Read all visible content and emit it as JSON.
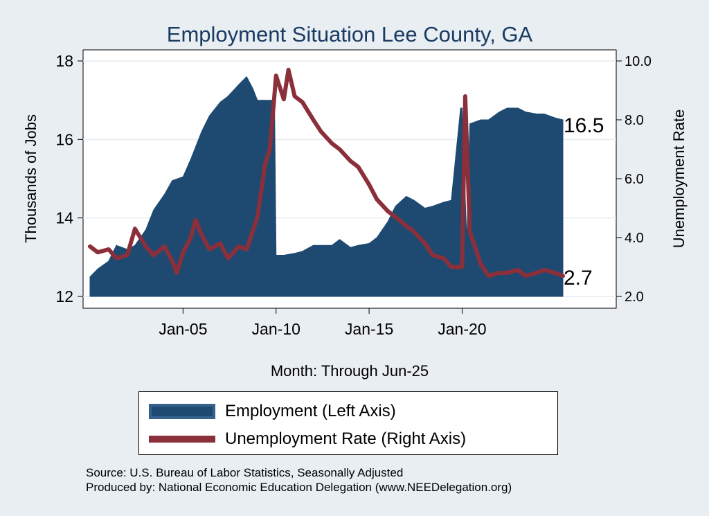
{
  "chart_data": {
    "type": "area",
    "title": "Employment Situation Lee  County, GA",
    "xlabel": "Month: Through Jun-25",
    "ylabel_left": "Thousands of Jobs",
    "ylabel_right": "Unemployment Rate",
    "x_ticks": [
      "Jan-05",
      "Jan-10",
      "Jan-15",
      "Jan-20"
    ],
    "y_left_ticks": [
      "12",
      "14",
      "16",
      "18"
    ],
    "y_right_ticks": [
      "2.0",
      "4.0",
      "6.0",
      "8.0",
      "10.0"
    ],
    "y_left_range": [
      12,
      18
    ],
    "y_right_range": [
      2,
      10
    ],
    "x_range": [
      "2000-01",
      "2025-06"
    ],
    "grid": true,
    "legend_position": "bottom",
    "series": [
      {
        "name": "Employment (Left Axis)",
        "axis": "left",
        "kind": "area",
        "color": "#1e4a72",
        "points": [
          [
            "2000-01",
            12.5
          ],
          [
            "2000-06",
            12.7
          ],
          [
            "2001-01",
            12.9
          ],
          [
            "2001-06",
            13.3
          ],
          [
            "2002-01",
            13.2
          ],
          [
            "2002-06",
            13.3
          ],
          [
            "2003-01",
            13.7
          ],
          [
            "2003-06",
            14.2
          ],
          [
            "2004-01",
            14.6
          ],
          [
            "2004-06",
            14.95
          ],
          [
            "2005-01",
            15.05
          ],
          [
            "2005-06",
            15.5
          ],
          [
            "2006-01",
            16.2
          ],
          [
            "2006-06",
            16.6
          ],
          [
            "2007-01",
            16.95
          ],
          [
            "2007-06",
            17.1
          ],
          [
            "2008-01",
            17.4
          ],
          [
            "2008-06",
            17.6
          ],
          [
            "2008-10",
            17.3
          ],
          [
            "2009-01",
            17.0
          ],
          [
            "2009-06",
            17.0
          ],
          [
            "2009-12",
            17.0
          ],
          [
            "2010-01",
            13.05
          ],
          [
            "2010-06",
            13.05
          ],
          [
            "2011-01",
            13.1
          ],
          [
            "2011-06",
            13.15
          ],
          [
            "2012-01",
            13.3
          ],
          [
            "2012-06",
            13.3
          ],
          [
            "2013-01",
            13.3
          ],
          [
            "2013-06",
            13.45
          ],
          [
            "2014-01",
            13.25
          ],
          [
            "2014-06",
            13.3
          ],
          [
            "2015-01",
            13.35
          ],
          [
            "2015-06",
            13.5
          ],
          [
            "2016-01",
            13.9
          ],
          [
            "2016-06",
            14.3
          ],
          [
            "2017-01",
            14.55
          ],
          [
            "2017-06",
            14.45
          ],
          [
            "2018-01",
            14.25
          ],
          [
            "2018-06",
            14.3
          ],
          [
            "2019-01",
            14.4
          ],
          [
            "2019-06",
            14.45
          ],
          [
            "2019-12",
            16.8
          ],
          [
            "2020-01",
            16.8
          ],
          [
            "2020-04",
            13.4
          ],
          [
            "2020-06",
            16.4
          ],
          [
            "2021-01",
            16.5
          ],
          [
            "2021-06",
            16.5
          ],
          [
            "2022-01",
            16.7
          ],
          [
            "2022-06",
            16.8
          ],
          [
            "2023-01",
            16.8
          ],
          [
            "2023-06",
            16.7
          ],
          [
            "2024-01",
            16.65
          ],
          [
            "2024-06",
            16.65
          ],
          [
            "2025-01",
            16.55
          ],
          [
            "2025-06",
            16.5
          ]
        ]
      },
      {
        "name": "Unemployment Rate (Right Axis)",
        "axis": "right",
        "kind": "line",
        "color": "#8b2f3a",
        "points": [
          [
            "2000-01",
            3.7
          ],
          [
            "2000-06",
            3.5
          ],
          [
            "2001-01",
            3.6
          ],
          [
            "2001-06",
            3.3
          ],
          [
            "2002-01",
            3.4
          ],
          [
            "2002-06",
            4.3
          ],
          [
            "2003-01",
            3.7
          ],
          [
            "2003-06",
            3.4
          ],
          [
            "2004-01",
            3.7
          ],
          [
            "2004-06",
            3.2
          ],
          [
            "2004-09",
            2.8
          ],
          [
            "2005-01",
            3.5
          ],
          [
            "2005-06",
            4.0
          ],
          [
            "2005-09",
            4.6
          ],
          [
            "2006-01",
            4.1
          ],
          [
            "2006-06",
            3.6
          ],
          [
            "2007-01",
            3.8
          ],
          [
            "2007-06",
            3.3
          ],
          [
            "2008-01",
            3.7
          ],
          [
            "2008-06",
            3.6
          ],
          [
            "2009-01",
            4.7
          ],
          [
            "2009-06",
            6.5
          ],
          [
            "2009-09",
            7.0
          ],
          [
            "2010-01",
            9.5
          ],
          [
            "2010-06",
            8.7
          ],
          [
            "2010-09",
            9.7
          ],
          [
            "2011-01",
            8.8
          ],
          [
            "2011-06",
            8.6
          ],
          [
            "2012-01",
            8.0
          ],
          [
            "2012-06",
            7.6
          ],
          [
            "2013-01",
            7.2
          ],
          [
            "2013-06",
            7.0
          ],
          [
            "2014-01",
            6.6
          ],
          [
            "2014-06",
            6.4
          ],
          [
            "2015-01",
            5.8
          ],
          [
            "2015-06",
            5.3
          ],
          [
            "2016-01",
            4.9
          ],
          [
            "2016-06",
            4.7
          ],
          [
            "2017-01",
            4.4
          ],
          [
            "2017-06",
            4.2
          ],
          [
            "2018-01",
            3.8
          ],
          [
            "2018-06",
            3.4
          ],
          [
            "2019-01",
            3.3
          ],
          [
            "2019-06",
            3.0
          ],
          [
            "2020-01",
            3.0
          ],
          [
            "2020-03",
            8.8
          ],
          [
            "2020-06",
            4.2
          ],
          [
            "2021-01",
            3.1
          ],
          [
            "2021-06",
            2.7
          ],
          [
            "2022-01",
            2.8
          ],
          [
            "2022-06",
            2.8
          ],
          [
            "2023-01",
            2.9
          ],
          [
            "2023-06",
            2.7
          ],
          [
            "2024-01",
            2.8
          ],
          [
            "2024-06",
            2.9
          ],
          [
            "2025-01",
            2.8
          ],
          [
            "2025-06",
            2.7
          ]
        ]
      }
    ],
    "end_labels": {
      "employment": "16.5",
      "unemployment": "2.7"
    }
  },
  "legend": {
    "employment": "Employment (Left Axis)",
    "unemployment": "Unemployment Rate (Right Axis)"
  },
  "footer": {
    "source": "Source: U.S. Bureau of Labor Statistics, Seasonally Adjusted",
    "produced": "Produced by: National Economic Education Delegation (www.NEEDelegation.org)"
  }
}
